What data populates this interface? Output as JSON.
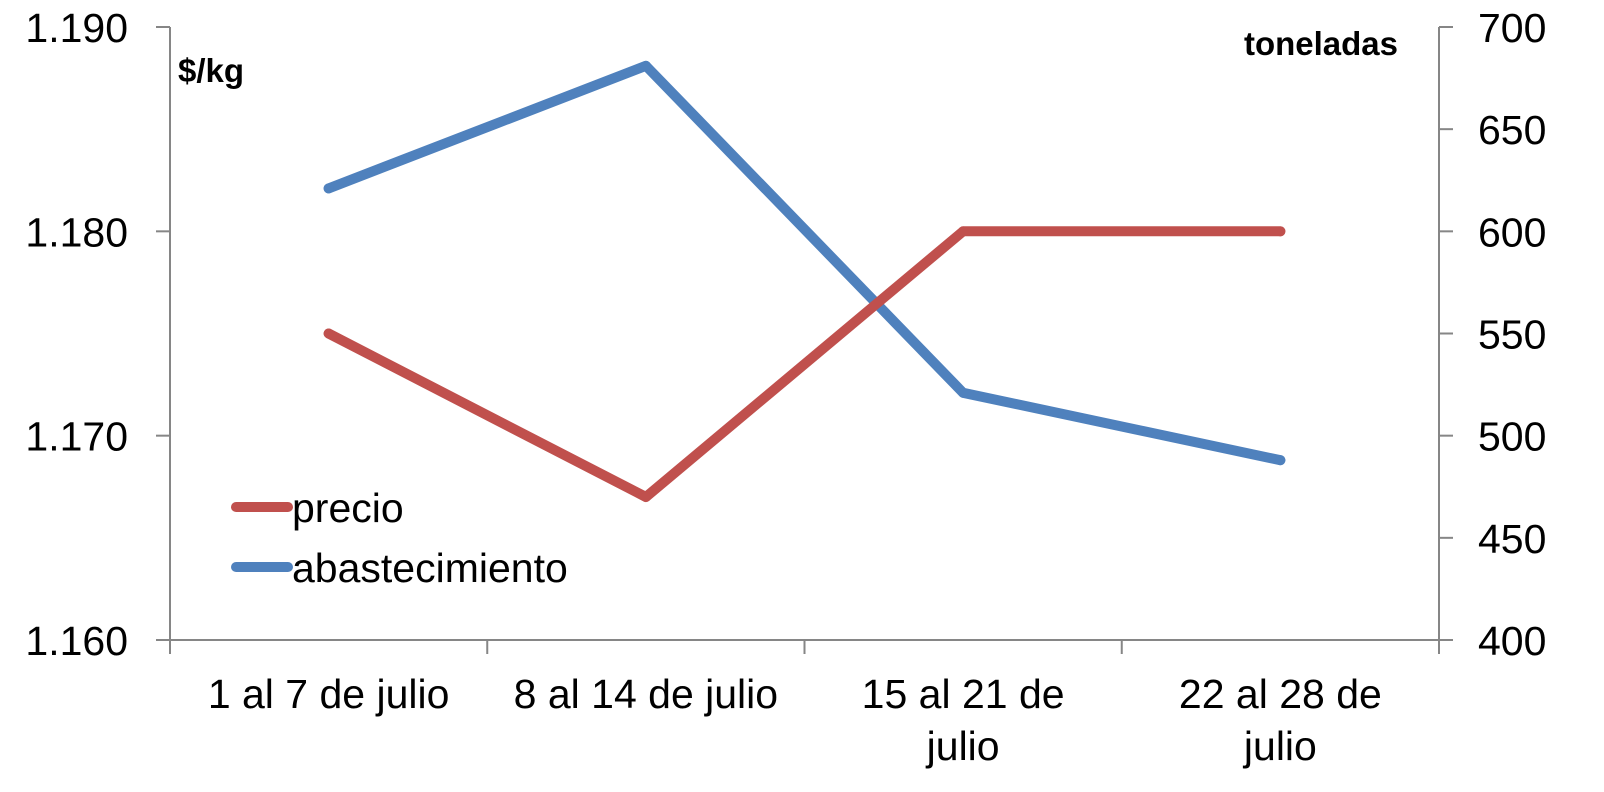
{
  "chart_data": {
    "type": "line",
    "categories": [
      [
        "1 al 7 de julio"
      ],
      [
        "8 al 14 de julio"
      ],
      [
        "15 al 21 de",
        "julio"
      ],
      [
        "22 al 28 de",
        "julio"
      ]
    ],
    "series": [
      {
        "name": "precio",
        "axis": "left",
        "color": "#C0504D",
        "values": [
          1.175,
          1.167,
          1.18,
          1.18
        ]
      },
      {
        "name": "abastecimiento",
        "axis": "right",
        "color": "#4F81BD",
        "values": [
          621,
          681,
          521,
          488
        ]
      }
    ],
    "left_axis": {
      "unit_label": "$/kg",
      "ylim": [
        1.16,
        1.19
      ],
      "ticks": [
        "1.160",
        "1.170",
        "1.180",
        "1.190"
      ]
    },
    "right_axis": {
      "unit_label": "toneladas",
      "ylim": [
        400,
        700
      ],
      "ticks": [
        "400",
        "450",
        "500",
        "550",
        "600",
        "650",
        "700"
      ]
    },
    "grid": false,
    "legend_position": "lower-left"
  }
}
